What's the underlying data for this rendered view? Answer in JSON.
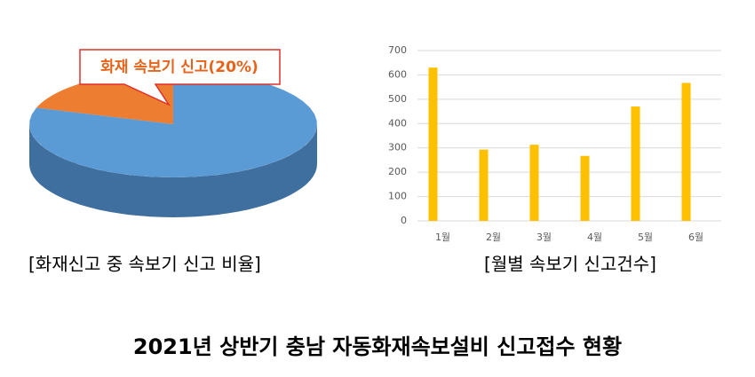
{
  "title": "2021년 상반기 충남 자동화재속보설비 신고접수 현황",
  "chart_data": [
    {
      "type": "pie",
      "caption": "[화재신고 중 속보기 신고 비율]",
      "values": [
        20,
        80
      ],
      "value_labels": [
        "화재 속보기 신고(20%)",
        null
      ],
      "colors": [
        "#ed7d31",
        "#5b9bd5"
      ],
      "side_colors": [
        "#b35a1f",
        "#3f6f9f"
      ]
    },
    {
      "type": "bar",
      "caption": "[월별 속보기 신고건수]",
      "categories": [
        "1월",
        "2월",
        "3월",
        "4월",
        "5월",
        "6월"
      ],
      "values": [
        630,
        293,
        313,
        267,
        470,
        567
      ],
      "color": "#ffc000",
      "ylim": [
        0,
        700
      ],
      "yticks": [
        0,
        100,
        200,
        300,
        400,
        500,
        600,
        700
      ],
      "grid": true
    }
  ]
}
